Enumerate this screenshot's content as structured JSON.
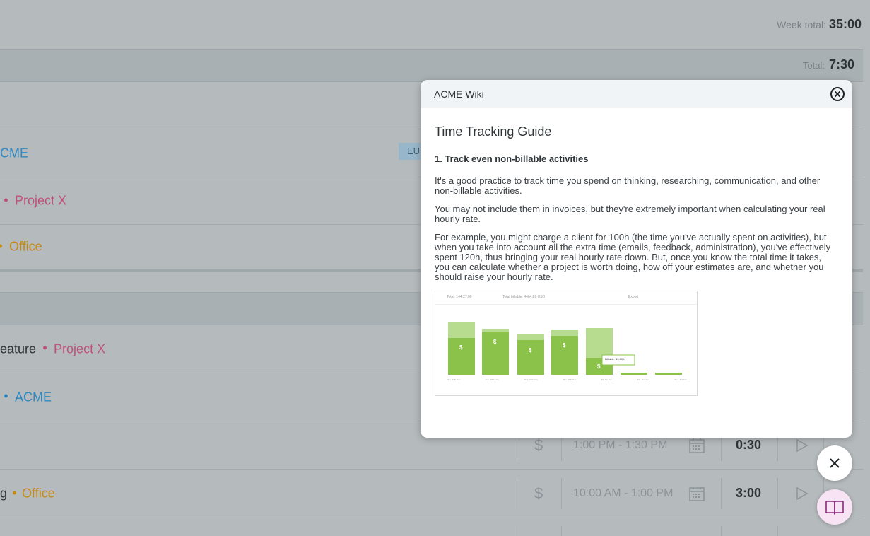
{
  "week_total": {
    "label": "Week total:",
    "value": "35:00"
  },
  "groups": [
    {
      "total_label": "Total:",
      "total_value": "7:30"
    }
  ],
  "rows": [
    {
      "text": "CME",
      "color": "blue"
    },
    {
      "text": "Project X",
      "color": "pink"
    },
    {
      "text": "Office",
      "color": "orange"
    },
    {
      "text_prefix": "eature",
      "text": "Project X",
      "color": "pink"
    },
    {
      "text": "ACME",
      "color": "blue"
    },
    {
      "text_prefix": "g",
      "text": "Office",
      "color": "orange"
    }
  ],
  "tag": "EU",
  "entries": [
    {
      "time_range": "1:00 PM - 1:30 PM",
      "duration": "0:30"
    },
    {
      "time_range": "10:00 AM - 1:00 PM",
      "duration": "3:00"
    }
  ],
  "wiki": {
    "window_title": "ACME Wiki",
    "heading": "Time Tracking Guide",
    "section_title": "1. Track even non-billable activities",
    "paragraphs": [
      "It's a good practice to track time you spend on thinking, researching, communication, and other non-billable activities.",
      "You may not include them in invoices, but they're extremely important when calculating your real hourly rate.",
      "For example, you might charge a client for 100h (the time you've actually spent on activities), but when you take into account all the extra time (emails, feedback, administration), you've effectively spent 120h, thus bringing your real hourly rate down. But, once you know the total time it takes, you can calculate whether a project is worth doing, how off your estimates are, and whether you should raise your hourly rate."
    ],
    "image": {
      "total_label": "Total: 144:27:00",
      "billable_label": "Total billable: 4464.89 USD",
      "export_label": "Export",
      "bar_day_labels": [
        "Mon, 27th Nov",
        "Tue, 28th Nov",
        "Wed, 29th Nov",
        "Thu, 30th Nov",
        "Fri, 1st Dec",
        "Sat, 2nd Dec",
        "Sun, 3rd Dec"
      ],
      "tooltip": "Billable: 19:30 h"
    }
  },
  "colors": {
    "accent_green": "#8bc34a",
    "light_green": "#b7dc8f",
    "blue": "#2f88c0",
    "pink": "#c0507a",
    "orange": "#c58a10"
  }
}
